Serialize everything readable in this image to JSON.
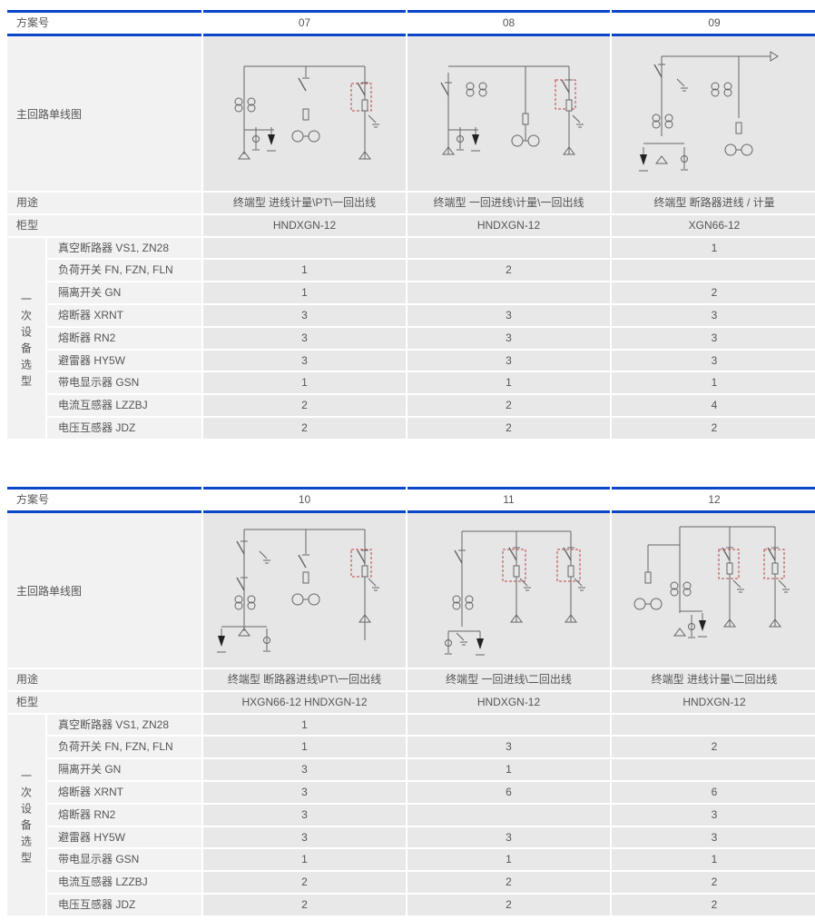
{
  "row_labels": {
    "scheme": "方案号",
    "diagram": "主回路单线图",
    "usage": "用途",
    "cabinet": "柜型",
    "group": "一次设备选型",
    "items": [
      "真空断路器 VS1, ZN28",
      "负荷开关 FN, FZN, FLN",
      "隔离开关 GN",
      "熔断器 XRNT",
      "熔断器 RN2",
      "避雷器 HY5W",
      "带电显示器 GSN",
      "电流互感器 LZZBJ",
      "电压互感器 JDZ"
    ]
  },
  "tables": [
    {
      "schemes": [
        {
          "no": "07",
          "usage": "终端型  进线计量\\PT\\一回出线",
          "cabinet": "HNDXGN-12",
          "values": [
            "",
            "1",
            "1",
            "3",
            "3",
            "3",
            "1",
            "2",
            "2"
          ]
        },
        {
          "no": "08",
          "usage": "终端型  一回进线\\计量\\一回出线",
          "cabinet": "HNDXGN-12",
          "values": [
            "",
            "2",
            "",
            "3",
            "3",
            "3",
            "1",
            "2",
            "2"
          ]
        },
        {
          "no": "09",
          "usage": "终端型 断路器进线 / 计量",
          "cabinet": "XGN66-12",
          "values": [
            "1",
            "",
            "2",
            "3",
            "3",
            "3",
            "1",
            "4",
            "2"
          ]
        }
      ]
    },
    {
      "schemes": [
        {
          "no": "10",
          "usage": "终端型  断路器进线\\PT\\一回出线",
          "cabinet": "HXGN66-12   HNDXGN-12",
          "values": [
            "1",
            "1",
            "3",
            "3",
            "3",
            "3",
            "1",
            "2",
            "2"
          ]
        },
        {
          "no": "11",
          "usage": "终端型  一回进线\\二回出线",
          "cabinet": "HNDXGN-12",
          "values": [
            "",
            "3",
            "1",
            "6",
            "",
            "3",
            "1",
            "2",
            "2"
          ]
        },
        {
          "no": "12",
          "usage": "终端型  进线计量\\二回出线",
          "cabinet": "HNDXGN-12",
          "values": [
            "",
            "2",
            "",
            "6",
            "3",
            "3",
            "1",
            "2",
            "2"
          ]
        }
      ]
    }
  ],
  "colors": {
    "accent": "#0a46c8",
    "cell": "#e8e8e8",
    "label": "#f2f2f2"
  }
}
